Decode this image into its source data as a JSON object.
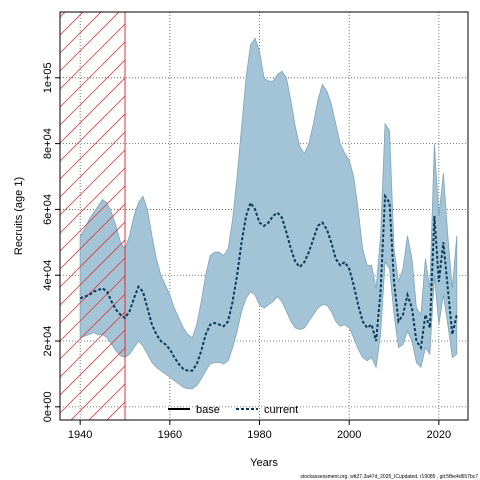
{
  "chart_data": {
    "type": "line",
    "xlabel": "Years",
    "ylabel": "Recruits (age 1)",
    "xlim": [
      1935.5,
      2026.5
    ],
    "ylim": [
      -4000,
      120000
    ],
    "x_ticks": [
      1940,
      1960,
      1980,
      2000,
      2020
    ],
    "x_tick_labels": [
      "1940",
      "1960",
      "1980",
      "2000",
      "2020"
    ],
    "y_ticks": [
      0,
      20000,
      40000,
      60000,
      80000,
      100000
    ],
    "y_tick_labels": [
      "0e+00",
      "2e+04",
      "4e+04",
      "6e+04",
      "8e+04",
      "1e+05"
    ],
    "grid": true,
    "legend_position": "bottom",
    "legend": [
      {
        "label": "base",
        "style": "solid",
        "color": "#000000"
      },
      {
        "label": "current",
        "style": "dashed",
        "color": "#0b3a5a"
      }
    ],
    "hatched_region": {
      "x_start": 1935.5,
      "x_end": 1950,
      "color": "#e03030"
    },
    "band_color": "#a3c4d6",
    "band_edge_color": "#7fa3b8",
    "years": [
      1940,
      1941,
      1942,
      1943,
      1944,
      1945,
      1946,
      1947,
      1948,
      1949,
      1950,
      1951,
      1952,
      1953,
      1954,
      1955,
      1956,
      1957,
      1958,
      1959,
      1960,
      1961,
      1962,
      1963,
      1964,
      1965,
      1966,
      1967,
      1968,
      1969,
      1970,
      1971,
      1972,
      1973,
      1974,
      1975,
      1976,
      1977,
      1978,
      1979,
      1980,
      1981,
      1982,
      1983,
      1984,
      1985,
      1986,
      1987,
      1988,
      1989,
      1990,
      1991,
      1992,
      1993,
      1994,
      1995,
      1996,
      1997,
      1998,
      1999,
      2000,
      2001,
      2002,
      2003,
      2004,
      2005,
      2006,
      2007,
      2008,
      2009,
      2010,
      2011,
      2012,
      2013,
      2014,
      2015,
      2016,
      2017,
      2018,
      2019,
      2020,
      2021,
      2022,
      2023,
      2024
    ],
    "series": [
      {
        "name": "current",
        "values": [
          33000,
          33500,
          34000,
          35000,
          35500,
          36000,
          35000,
          32000,
          29500,
          28000,
          27000,
          29000,
          33000,
          36500,
          35000,
          30000,
          25000,
          22000,
          20000,
          19000,
          17500,
          15000,
          13000,
          11500,
          11000,
          11000,
          13000,
          17000,
          22000,
          25000,
          25500,
          25000,
          24500,
          26000,
          32000,
          40000,
          50000,
          58000,
          62000,
          60000,
          56000,
          55000,
          56000,
          58000,
          59000,
          57500,
          53000,
          48000,
          44000,
          42500,
          44000,
          47000,
          51000,
          55000,
          56000,
          54000,
          50000,
          45000,
          43000,
          44000,
          42000,
          37000,
          31000,
          26000,
          24000,
          25000,
          20000,
          35000,
          64000,
          62000,
          38000,
          26000,
          28000,
          34000,
          30000,
          20000,
          18000,
          28000,
          24000,
          58000,
          38000,
          50000,
          36000,
          22000,
          28000
        ]
      }
    ],
    "upper": [
      52000,
      54000,
      57000,
      59000,
      61000,
      63000,
      62000,
      59000,
      55000,
      50000,
      48000,
      52000,
      58000,
      62000,
      64000,
      60000,
      52000,
      45000,
      40000,
      37000,
      34000,
      30000,
      27000,
      24000,
      22000,
      21000,
      25000,
      32000,
      40000,
      46000,
      47000,
      47000,
      46000,
      48000,
      57000,
      70000,
      85000,
      100000,
      110000,
      112000,
      108000,
      100000,
      99000,
      99000,
      101000,
      102000,
      100000,
      93000,
      85000,
      79000,
      77000,
      80000,
      86000,
      93000,
      98000,
      96000,
      92000,
      86000,
      80000,
      77000,
      75000,
      70000,
      60000,
      48000,
      43000,
      43000,
      36000,
      52000,
      86000,
      84000,
      48000,
      38000,
      42000,
      52000,
      45000,
      30000,
      28000,
      45000,
      36000,
      80000,
      58000,
      71000,
      52000,
      36000,
      52000
    ],
    "lower": [
      21000,
      21500,
      22000,
      22500,
      22000,
      22000,
      21000,
      19000,
      17000,
      15500,
      15000,
      16000,
      18000,
      20000,
      18500,
      16000,
      13500,
      12000,
      11000,
      10000,
      9000,
      8000,
      7000,
      6000,
      5500,
      5500,
      6500,
      8500,
      11000,
      13000,
      13500,
      13500,
      13000,
      14000,
      18000,
      23000,
      29000,
      33000,
      35000,
      34000,
      31000,
      30000,
      31000,
      32000,
      33500,
      32000,
      29000,
      26000,
      24000,
      23500,
      24000,
      26000,
      28000,
      30000,
      31000,
      31000,
      29000,
      26000,
      24500,
      25000,
      24000,
      21000,
      17500,
      15000,
      14000,
      15000,
      12000,
      22000,
      44000,
      42000,
      28000,
      18000,
      19000,
      23000,
      20000,
      13500,
      12000,
      18000,
      16000,
      40000,
      25000,
      34000,
      25000,
      15000,
      16000
    ]
  },
  "footer_text": "stockassessment.org, wtt27.3a47d_2025_ICupdated, r19085 , git:5fbe4d657bc7"
}
